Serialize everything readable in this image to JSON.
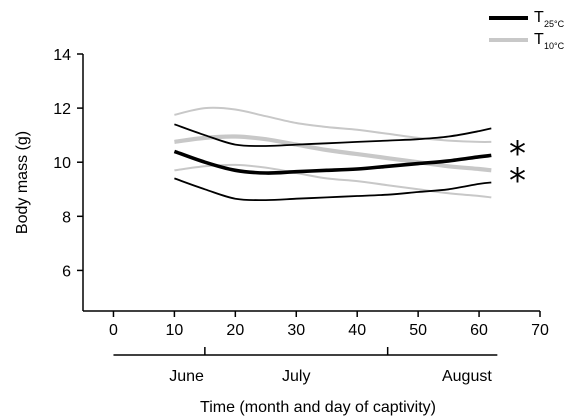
{
  "chart_data": {
    "type": "line",
    "xlabel": "Time (month and day of captivity)",
    "ylabel": "Body mass (g)",
    "xlim": [
      -5,
      70
    ],
    "ylim": [
      4.5,
      14
    ],
    "xticks": [
      0,
      10,
      20,
      30,
      40,
      50,
      60,
      70
    ],
    "yticks": [
      6,
      8,
      10,
      12,
      14
    ],
    "months": {
      "labels": [
        "June",
        "July",
        "August"
      ],
      "label_centers": [
        12,
        30,
        58
      ],
      "dividers": [
        15,
        45
      ],
      "range": [
        0,
        63
      ]
    },
    "legend": {
      "entries": [
        {
          "main": "T",
          "sub": "25°C",
          "color": "#000000"
        },
        {
          "main": "T",
          "sub": "10°C",
          "color": "#c8c8c8"
        }
      ],
      "position": "top-right"
    },
    "series": [
      {
        "group": "T25",
        "color": "#000000",
        "mean": {
          "x": [
            10,
            15,
            20,
            25,
            30,
            35,
            40,
            45,
            50,
            55,
            60,
            62
          ],
          "y": [
            10.4,
            10.0,
            9.7,
            9.6,
            9.65,
            9.7,
            9.75,
            9.85,
            9.95,
            10.05,
            10.2,
            10.25
          ]
        },
        "upper": {
          "x": [
            10,
            15,
            20,
            25,
            30,
            35,
            40,
            45,
            50,
            55,
            60,
            62
          ],
          "y": [
            11.4,
            11.0,
            10.65,
            10.6,
            10.65,
            10.7,
            10.75,
            10.8,
            10.85,
            10.95,
            11.15,
            11.25
          ]
        },
        "lower": {
          "x": [
            10,
            15,
            20,
            25,
            30,
            35,
            40,
            45,
            50,
            55,
            60,
            62
          ],
          "y": [
            9.4,
            9.0,
            8.65,
            8.6,
            8.65,
            8.7,
            8.75,
            8.8,
            8.9,
            9.0,
            9.2,
            9.25
          ]
        }
      },
      {
        "group": "T10",
        "color": "#c8c8c8",
        "mean": {
          "x": [
            10,
            15,
            20,
            25,
            30,
            35,
            40,
            45,
            50,
            55,
            60,
            62
          ],
          "y": [
            10.75,
            10.9,
            10.95,
            10.85,
            10.65,
            10.45,
            10.3,
            10.15,
            10.0,
            9.85,
            9.75,
            9.7
          ]
        },
        "upper": {
          "x": [
            10,
            15,
            20,
            25,
            30,
            35,
            40,
            45,
            50,
            55,
            60,
            62
          ],
          "y": [
            11.75,
            12.0,
            11.95,
            11.7,
            11.45,
            11.3,
            11.2,
            11.05,
            10.9,
            10.8,
            10.75,
            10.75
          ]
        },
        "lower": {
          "x": [
            10,
            15,
            20,
            25,
            30,
            35,
            40,
            45,
            50,
            55,
            60,
            62
          ],
          "y": [
            9.7,
            9.85,
            9.9,
            9.8,
            9.6,
            9.4,
            9.3,
            9.15,
            9.0,
            8.85,
            8.75,
            8.7
          ]
        }
      }
    ],
    "annotations": [
      "*",
      "*"
    ]
  }
}
